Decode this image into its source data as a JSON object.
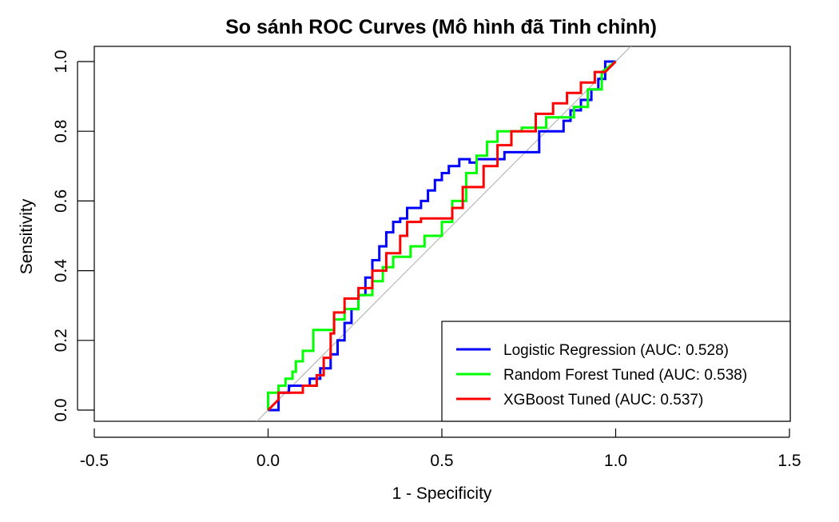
{
  "chart_data": {
    "type": "line",
    "title": "So sánh ROC Curves (Mô hình đã Tinh chỉnh)",
    "xlabel": "1 - Specificity",
    "ylabel": "Sensitivity",
    "xlim": [
      -0.5,
      1.5
    ],
    "ylim": [
      -0.03,
      1.04
    ],
    "xticks": [
      -0.5,
      0.0,
      0.5,
      1.0,
      1.5
    ],
    "xtick_labels": [
      "-0.5",
      "0.0",
      "0.5",
      "1.0",
      "1.5"
    ],
    "yticks": [
      0.0,
      0.2,
      0.4,
      0.6,
      0.8,
      1.0
    ],
    "ytick_labels": [
      "0.0",
      "0.2",
      "0.4",
      "0.6",
      "0.8",
      "1.0"
    ],
    "grid": false,
    "legend_position": "bottom-right",
    "diagonal_color": "#aaaaaa",
    "series": [
      {
        "name": "Logistic Regression (AUC: 0.528)",
        "color": "#0000ff",
        "x": [
          0.0,
          0.03,
          0.03,
          0.06,
          0.06,
          0.12,
          0.12,
          0.15,
          0.15,
          0.18,
          0.18,
          0.2,
          0.2,
          0.22,
          0.22,
          0.24,
          0.24,
          0.26,
          0.26,
          0.28,
          0.28,
          0.3,
          0.3,
          0.32,
          0.32,
          0.34,
          0.34,
          0.36,
          0.36,
          0.38,
          0.38,
          0.4,
          0.4,
          0.44,
          0.44,
          0.46,
          0.46,
          0.48,
          0.48,
          0.5,
          0.5,
          0.52,
          0.52,
          0.55,
          0.55,
          0.58,
          0.58,
          0.6,
          0.6,
          0.68,
          0.68,
          0.78,
          0.78,
          0.85,
          0.85,
          0.87,
          0.87,
          0.9,
          0.9,
          0.93,
          0.93,
          0.95,
          0.95,
          0.97,
          0.97,
          1.0
        ],
        "y": [
          0.0,
          0.0,
          0.05,
          0.05,
          0.07,
          0.07,
          0.09,
          0.09,
          0.12,
          0.12,
          0.16,
          0.16,
          0.2,
          0.2,
          0.25,
          0.25,
          0.29,
          0.29,
          0.33,
          0.33,
          0.38,
          0.38,
          0.43,
          0.43,
          0.47,
          0.47,
          0.51,
          0.51,
          0.54,
          0.54,
          0.55,
          0.55,
          0.58,
          0.58,
          0.6,
          0.6,
          0.63,
          0.63,
          0.66,
          0.66,
          0.68,
          0.68,
          0.7,
          0.7,
          0.72,
          0.72,
          0.71,
          0.71,
          0.72,
          0.72,
          0.74,
          0.74,
          0.8,
          0.8,
          0.83,
          0.83,
          0.86,
          0.86,
          0.89,
          0.89,
          0.92,
          0.92,
          0.95,
          0.95,
          1.0,
          1.0
        ]
      },
      {
        "name": "Random Forest Tuned (AUC: 0.538)",
        "color": "#00ff00",
        "x": [
          0.0,
          0.0,
          0.03,
          0.03,
          0.05,
          0.05,
          0.07,
          0.07,
          0.08,
          0.08,
          0.1,
          0.1,
          0.13,
          0.13,
          0.19,
          0.19,
          0.22,
          0.22,
          0.26,
          0.26,
          0.3,
          0.3,
          0.33,
          0.33,
          0.36,
          0.36,
          0.41,
          0.41,
          0.45,
          0.45,
          0.5,
          0.5,
          0.53,
          0.53,
          0.57,
          0.57,
          0.6,
          0.6,
          0.63,
          0.63,
          0.66,
          0.66,
          0.73,
          0.73,
          0.8,
          0.8,
          0.88,
          0.88,
          0.92,
          0.92,
          0.96,
          0.96,
          1.0
        ],
        "y": [
          0.0,
          0.05,
          0.05,
          0.07,
          0.07,
          0.09,
          0.09,
          0.11,
          0.11,
          0.14,
          0.14,
          0.17,
          0.17,
          0.23,
          0.23,
          0.26,
          0.26,
          0.29,
          0.29,
          0.33,
          0.33,
          0.37,
          0.37,
          0.41,
          0.41,
          0.44,
          0.44,
          0.47,
          0.47,
          0.5,
          0.5,
          0.54,
          0.54,
          0.6,
          0.6,
          0.68,
          0.68,
          0.73,
          0.73,
          0.77,
          0.77,
          0.8,
          0.8,
          0.81,
          0.81,
          0.84,
          0.84,
          0.87,
          0.87,
          0.92,
          0.92,
          0.97,
          1.0
        ]
      },
      {
        "name": "XGBoost Tuned (AUC: 0.537)",
        "color": "#ff0000",
        "x": [
          0.0,
          0.03,
          0.03,
          0.1,
          0.1,
          0.14,
          0.14,
          0.16,
          0.16,
          0.18,
          0.18,
          0.19,
          0.19,
          0.22,
          0.22,
          0.26,
          0.26,
          0.3,
          0.3,
          0.34,
          0.34,
          0.38,
          0.38,
          0.4,
          0.4,
          0.44,
          0.44,
          0.53,
          0.53,
          0.56,
          0.56,
          0.62,
          0.62,
          0.66,
          0.66,
          0.7,
          0.7,
          0.77,
          0.77,
          0.82,
          0.82,
          0.86,
          0.86,
          0.9,
          0.9,
          0.94,
          0.94,
          0.97,
          1.0
        ],
        "y": [
          0.0,
          0.03,
          0.05,
          0.05,
          0.07,
          0.07,
          0.1,
          0.1,
          0.15,
          0.15,
          0.22,
          0.22,
          0.28,
          0.28,
          0.32,
          0.32,
          0.35,
          0.35,
          0.4,
          0.4,
          0.45,
          0.45,
          0.5,
          0.5,
          0.54,
          0.54,
          0.55,
          0.55,
          0.58,
          0.58,
          0.64,
          0.64,
          0.7,
          0.7,
          0.76,
          0.76,
          0.8,
          0.8,
          0.85,
          0.85,
          0.88,
          0.88,
          0.91,
          0.91,
          0.94,
          0.94,
          0.97,
          0.97,
          1.0
        ]
      }
    ]
  }
}
